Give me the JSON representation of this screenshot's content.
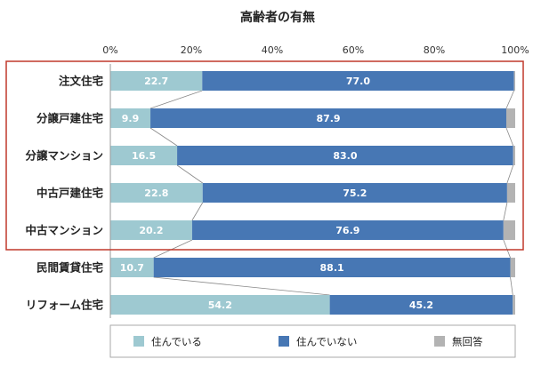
{
  "chart_data": {
    "type": "bar",
    "orientation": "horizontal",
    "stacked": true,
    "percent": true,
    "title": "高齢者の有無",
    "xlim": [
      0,
      100
    ],
    "x_ticks": [
      "0%",
      "20%",
      "40%",
      "60%",
      "80%",
      "100%"
    ],
    "categories": [
      "注文住宅",
      "分譲戸建住宅",
      "分譲マンション",
      "中古戸建住宅",
      "中古マンション",
      "民間賃貸住宅",
      "リフォーム住宅"
    ],
    "series": [
      {
        "name": "住んでいる",
        "color": "#9ec9d1",
        "values": [
          22.7,
          9.9,
          16.5,
          22.8,
          20.2,
          10.7,
          54.2
        ],
        "labels": [
          "22.7",
          "9.9",
          "16.5",
          "22.8",
          "20.2",
          "10.7",
          "54.2"
        ]
      },
      {
        "name": "住んでいない",
        "color": "#4777b4",
        "values": [
          77.0,
          87.9,
          83.0,
          75.2,
          76.9,
          88.1,
          45.2
        ],
        "labels": [
          "77.0",
          "87.9",
          "83.0",
          "75.2",
          "76.9",
          "88.1",
          "45.2"
        ]
      },
      {
        "name": "無回答",
        "color": "#b3b3b3",
        "values": [
          0.3,
          2.2,
          0.5,
          2.0,
          2.9,
          1.2,
          0.6
        ]
      }
    ],
    "highlight_box_color": "#c0392b",
    "highlight_categories": [
      0,
      4
    ],
    "legend_position": "bottom",
    "grid": false
  }
}
